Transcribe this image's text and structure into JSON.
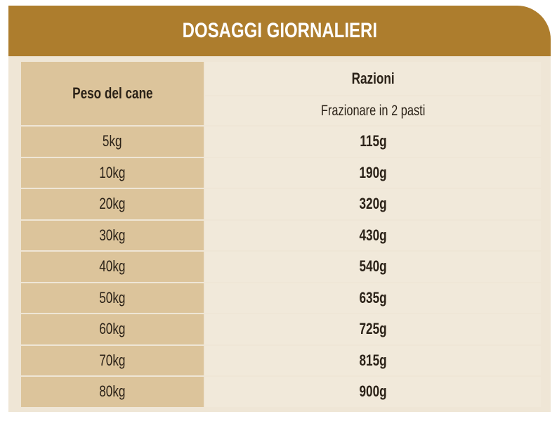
{
  "header": {
    "title": "DOSAGGI GIORNALIERI"
  },
  "table": {
    "columns": {
      "weight": "Peso del cane",
      "ration": "Razioni",
      "ration_note": "Frazionare in 2 pasti"
    },
    "rows": [
      [
        "5kg",
        "115g"
      ],
      [
        "10kg",
        "190g"
      ],
      [
        "20kg",
        "320g"
      ],
      [
        "30kg",
        "430g"
      ],
      [
        "40kg",
        "540g"
      ],
      [
        "50kg",
        "635g"
      ],
      [
        "60kg",
        "725g"
      ],
      [
        "70kg",
        "815g"
      ],
      [
        "80kg",
        "900g"
      ]
    ]
  }
}
